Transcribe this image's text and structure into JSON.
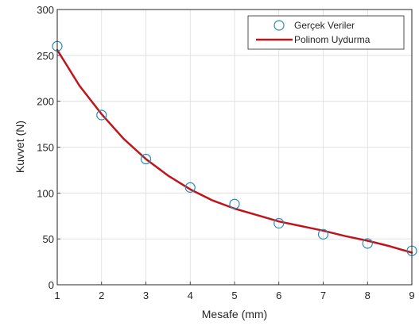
{
  "chart_data": {
    "type": "scatter",
    "xlabel": "Mesafe (mm)",
    "ylabel": "Kuvvet (N)",
    "xlim": [
      1,
      9
    ],
    "ylim": [
      0,
      300
    ],
    "x_ticks": [
      "1",
      "2",
      "3",
      "4",
      "5",
      "6",
      "7",
      "8",
      "9"
    ],
    "y_ticks": [
      "0",
      "50",
      "100",
      "150",
      "200",
      "250",
      "300"
    ],
    "grid": true,
    "legend_position": "top-right",
    "series": [
      {
        "name": "Gerçek Veriler",
        "kind": "scatter",
        "marker": "open-circle",
        "color": "#2a8bb5",
        "x": [
          1,
          2,
          3,
          4,
          5,
          6,
          7,
          8,
          9
        ],
        "y": [
          260,
          185,
          137,
          106,
          88,
          67,
          55,
          45,
          37
        ]
      },
      {
        "name": "Polinom Uydurma",
        "kind": "line",
        "color": "#c0141c",
        "x": [
          1,
          1.5,
          2,
          2.5,
          3,
          3.5,
          4,
          4.5,
          5,
          5.5,
          6,
          6.5,
          7,
          7.5,
          8,
          8.5,
          9
        ],
        "y": [
          256,
          217,
          186,
          159,
          137,
          119,
          104,
          92,
          83,
          76,
          69,
          64,
          59,
          53,
          48,
          42,
          35
        ]
      }
    ]
  }
}
